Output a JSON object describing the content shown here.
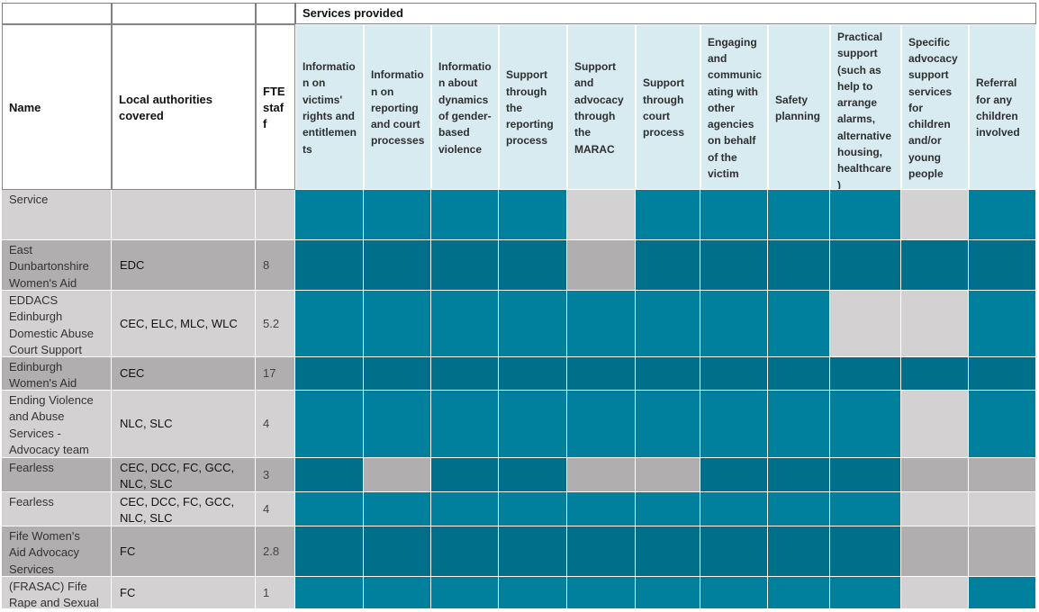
{
  "section_title": "Services provided",
  "columns": {
    "name": "Name",
    "local_authorities": "Local authorities\ncovered",
    "fte": "FTE\nstaf\nf"
  },
  "services": [
    "Informatio\nn on\nvictims'\nrights and\nentitlemen\nts",
    "Informatio\nn on\nreporting\nand court\nprocesses",
    "Informatio\nn about\ndynamics\nof gender-\nbased\nviolence",
    "Support\nthrough\nthe\nreporting\nprocess",
    "Support\nand\nadvocacy\nthrough\nthe\nMARAC",
    "Support\nthrough\ncourt\nprocess",
    "Engaging\nand\ncommunic\nating with\nother\nagencies\non behalf\nof the\nvictim",
    "Safety\nplanning",
    "Practical\nsupport\n(such as\nhelp to\narrange\nalarms,\nalternative\nhousing,\nhealthcare\n)",
    "Specific\nadvocacy\nsupport\nservices\nfor\nchildren\nand/or\nyoung\npeople",
    "Referral\nfor any\nchildren\ninvolved"
  ],
  "rows": [
    {
      "name": "Service",
      "authorities": "",
      "fte": "",
      "services": [
        1,
        1,
        1,
        1,
        0,
        1,
        1,
        1,
        1,
        0,
        1
      ]
    },
    {
      "name": "East\nDunbartonshire\nWomen's Aid",
      "authorities": "EDC",
      "fte": "8",
      "services": [
        1,
        1,
        1,
        1,
        0,
        1,
        1,
        1,
        1,
        1,
        1
      ]
    },
    {
      "name": "EDDACS\nEdinburgh\nDomestic Abuse\nCourt Support",
      "authorities": "CEC, ELC, MLC, WLC",
      "fte": "5.2",
      "services": [
        1,
        1,
        1,
        1,
        1,
        1,
        1,
        1,
        0,
        0,
        1
      ]
    },
    {
      "name": "Edinburgh\nWomen's Aid",
      "authorities": "CEC",
      "fte": "17",
      "services": [
        1,
        1,
        1,
        1,
        1,
        1,
        1,
        1,
        1,
        1,
        1
      ]
    },
    {
      "name": "Ending Violence\nand Abuse\nServices -\nAdvocacy team",
      "authorities": "NLC, SLC",
      "fte": "4",
      "services": [
        1,
        1,
        1,
        1,
        1,
        1,
        1,
        1,
        1,
        0,
        1
      ]
    },
    {
      "name": "Fearless",
      "authorities": "CEC, DCC, FC, GCC,\nNLC, SLC",
      "fte": "3",
      "services": [
        1,
        0,
        1,
        1,
        0,
        0,
        1,
        1,
        1,
        0,
        0
      ]
    },
    {
      "name": "Fearless",
      "authorities": "CEC, DCC, FC, GCC,\nNLC, SLC",
      "fte": "4",
      "services": [
        1,
        1,
        1,
        1,
        1,
        1,
        1,
        1,
        1,
        0,
        0
      ]
    },
    {
      "name": "Fife Women's\nAid Advocacy\nServices",
      "authorities": "FC",
      "fte": "2.8",
      "services": [
        1,
        1,
        1,
        1,
        1,
        1,
        1,
        1,
        1,
        0,
        0
      ]
    },
    {
      "name": "(FRASAC) Fife\nRape and Sexual",
      "authorities": "FC",
      "fte": "1",
      "services": [
        1,
        1,
        1,
        1,
        1,
        1,
        1,
        1,
        1,
        0,
        1
      ]
    }
  ],
  "colors": {
    "provided_light": "#00809c",
    "provided_dark": "#00708a",
    "not_provided_light": "#d4d1d2",
    "not_provided_dark": "#b1aeaf",
    "row_light": "#d4d1d2",
    "row_dark": "#b1aeaf",
    "header_bg": "#d7ebf0",
    "header_white": "#ffffff",
    "border": "#ffffff"
  }
}
